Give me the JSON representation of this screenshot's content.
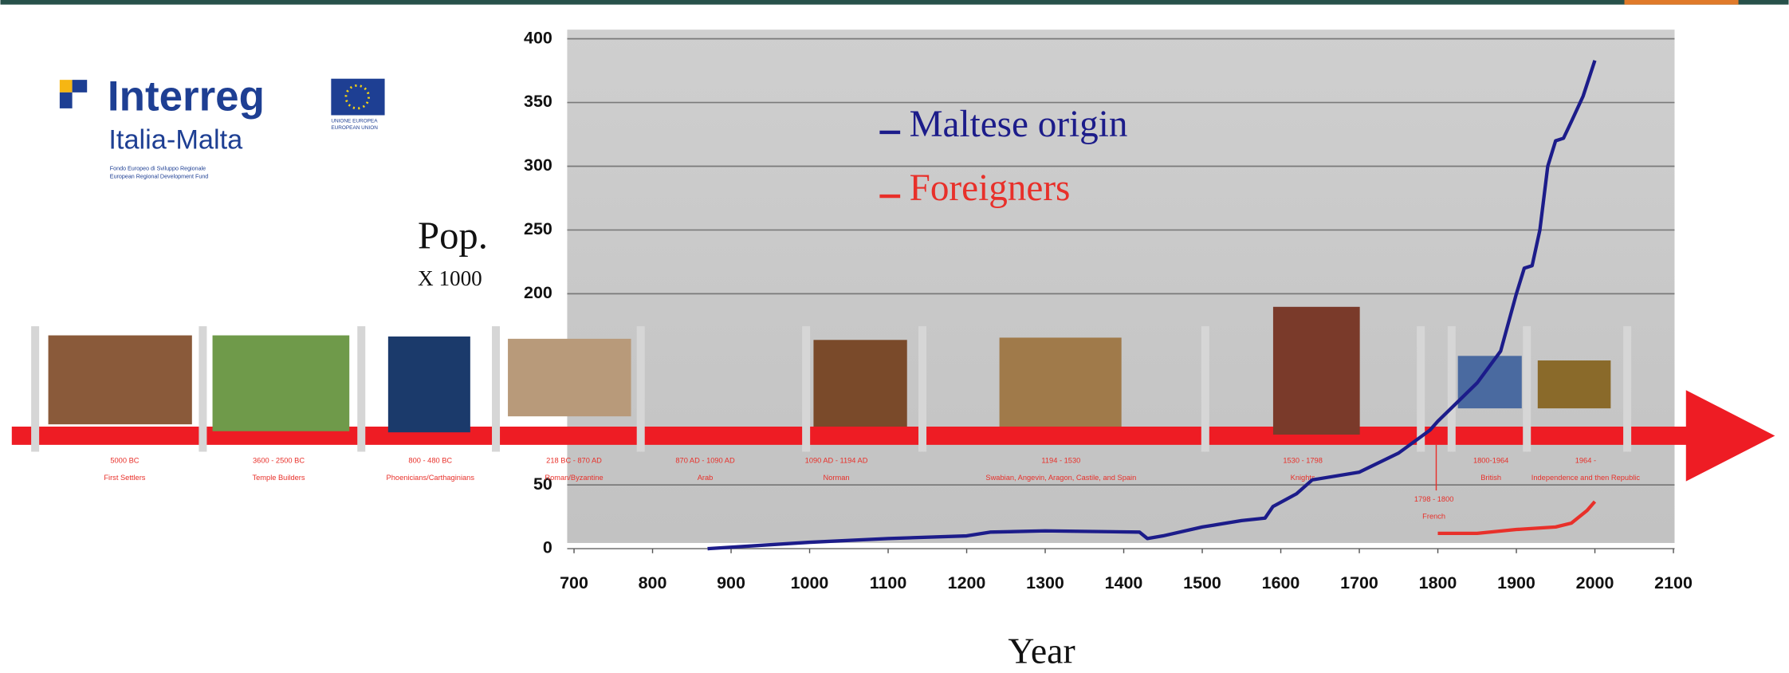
{
  "logo": {
    "brand": "Interreg",
    "program": "Italia-Malta",
    "eu_line1": "UNIONE EUROPEA",
    "eu_line2": "EUROPEAN UNION",
    "fund_line1": "Fondo Europeo di Sviluppo Regionale",
    "fund_line2": "European Regional Development Fund"
  },
  "timeline": [
    {
      "period": "5000 BC",
      "name": "First Settlers"
    },
    {
      "period": "3600 - 2500 BC",
      "name": "Temple Builders"
    },
    {
      "period": "800 - 480 BC",
      "name": "Phoenicians/Carthaginians"
    },
    {
      "period": "218 BC - 870 AD",
      "name": "Roman/Byzantine"
    },
    {
      "period": "870 AD - 1090 AD",
      "name": "Arab"
    },
    {
      "period": "1090 AD - 1194 AD",
      "name": "Norman"
    },
    {
      "period": "1194 - 1530",
      "name": "Swabian, Angevin, Aragon, Castile, and Spain"
    },
    {
      "period": "1530 - 1798",
      "name": "Knights"
    },
    {
      "period": "1798 - 1800",
      "name": "French"
    },
    {
      "period": "1800-1964",
      "name": "British"
    },
    {
      "period": "1964 -",
      "name": "Independence and then Republic"
    }
  ],
  "chart_data": {
    "type": "line",
    "y_label": "Pop.",
    "y_unit": "X 1000",
    "x_label": "Year",
    "xlim": [
      700,
      2100
    ],
    "xticks": [
      700,
      800,
      900,
      1000,
      1100,
      1200,
      1300,
      1400,
      1500,
      1600,
      1700,
      1800,
      1900,
      2000,
      2100
    ],
    "ylim": [
      0,
      400
    ],
    "yticks": [
      0,
      50,
      200,
      250,
      300,
      350,
      400
    ],
    "grid": true,
    "series": [
      {
        "name": "Maltese origin",
        "color": "#1c1c8a",
        "x": [
          870,
          1000,
          1100,
          1200,
          1230,
          1300,
          1420,
          1430,
          1450,
          1500,
          1550,
          1580,
          1590,
          1620,
          1640,
          1700,
          1750,
          1790,
          1800,
          1850,
          1880,
          1900,
          1910,
          1920,
          1930,
          1940,
          1950,
          1960,
          1970,
          1985,
          2000
        ],
        "values": [
          0,
          5,
          8,
          10,
          13,
          14,
          13,
          8,
          10,
          17,
          22,
          24,
          33,
          43,
          54,
          60,
          75,
          93,
          100,
          130,
          155,
          200,
          220,
          222,
          250,
          300,
          320,
          322,
          335,
          355,
          383
        ]
      },
      {
        "name": "Foreigners",
        "color": "#e8302a",
        "x": [
          1800,
          1850,
          1900,
          1950,
          1970,
          1990,
          2000
        ],
        "values": [
          12,
          12,
          15,
          17,
          20,
          30,
          37
        ]
      }
    ]
  }
}
